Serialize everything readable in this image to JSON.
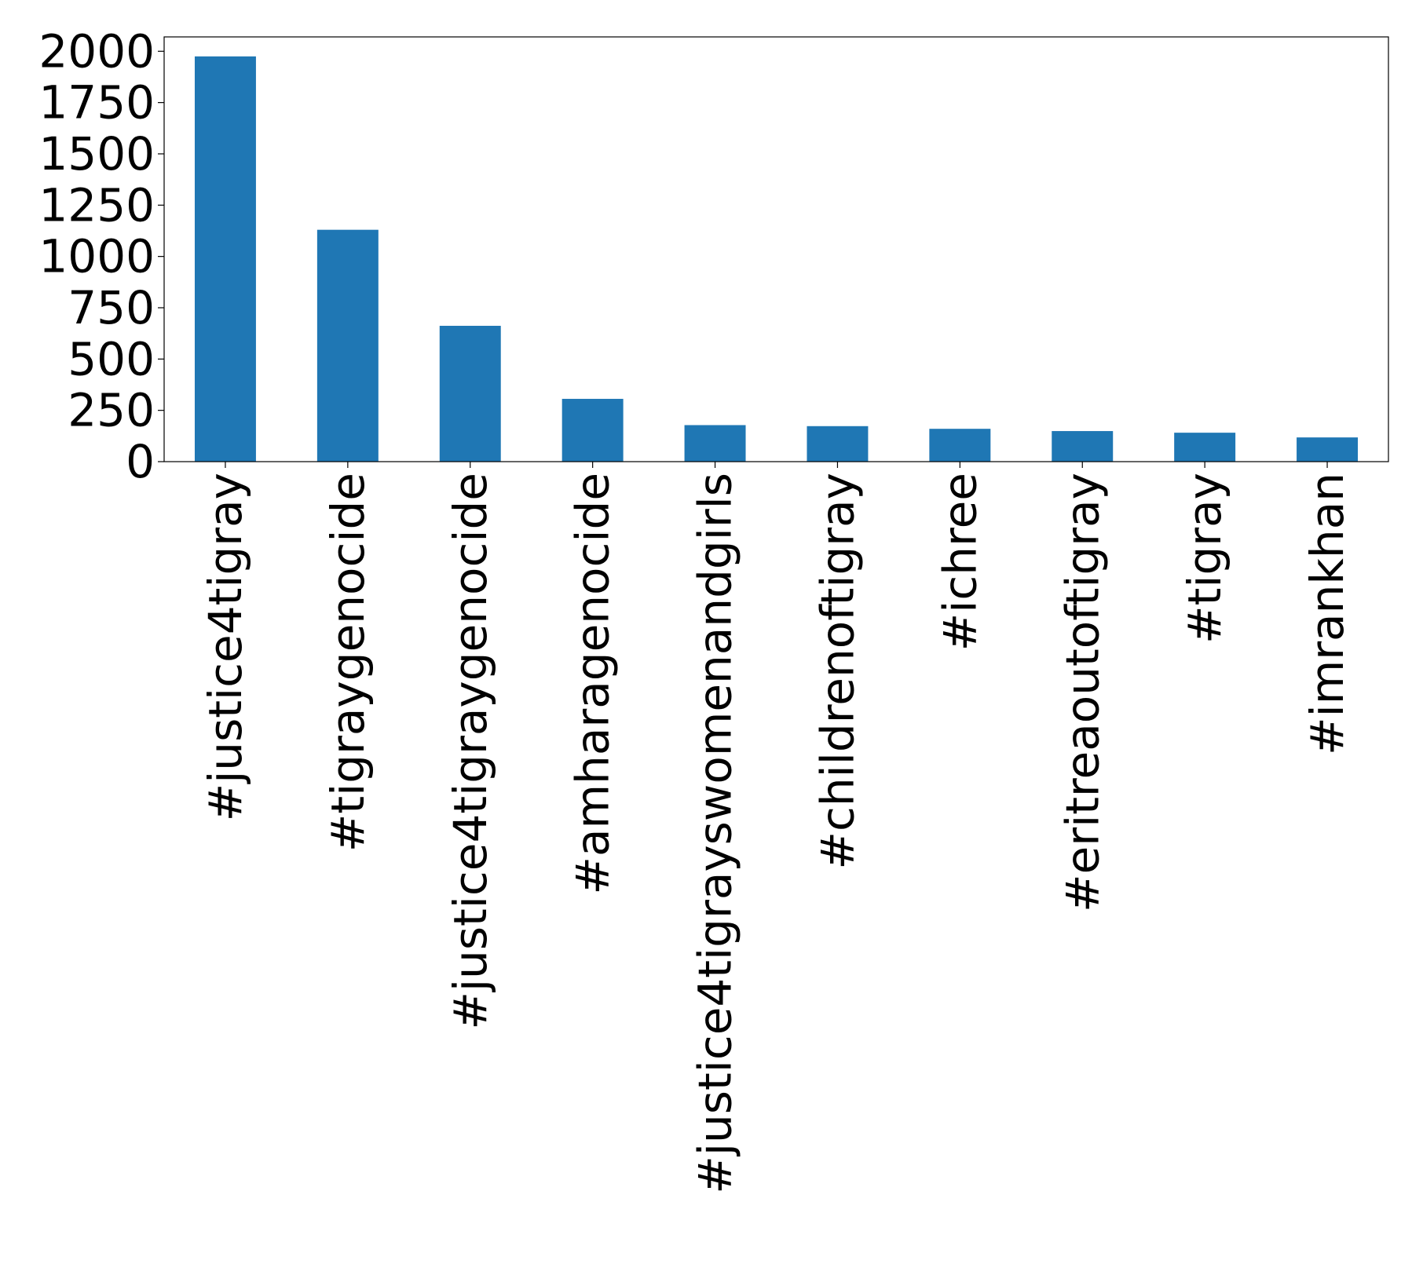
{
  "chart_data": {
    "type": "bar",
    "title": "",
    "xlabel": "",
    "ylabel": "",
    "categories": [
      "#justice4tigray",
      "#tigraygenocide",
      "#justice4tigraygenocide",
      "#amharagenocide",
      "#justice4tigrayswomenandgirls",
      "#childrenoftigray",
      "#ichree",
      "#eritreaoutoftigray",
      "#tigray",
      "#imrankhan"
    ],
    "values": [
      1975,
      1130,
      662,
      306,
      178,
      173,
      160,
      149,
      141,
      118
    ],
    "ylim": [
      0,
      2070
    ],
    "yticks": [
      0,
      250,
      500,
      750,
      1000,
      1250,
      1500,
      1750,
      2000
    ],
    "ytick_labels": [
      "0",
      "250",
      "500",
      "750",
      "1000",
      "1250",
      "1500",
      "1750",
      "2000"
    ],
    "grid": false,
    "legend": "none",
    "bar_color": "#1f77b4"
  }
}
